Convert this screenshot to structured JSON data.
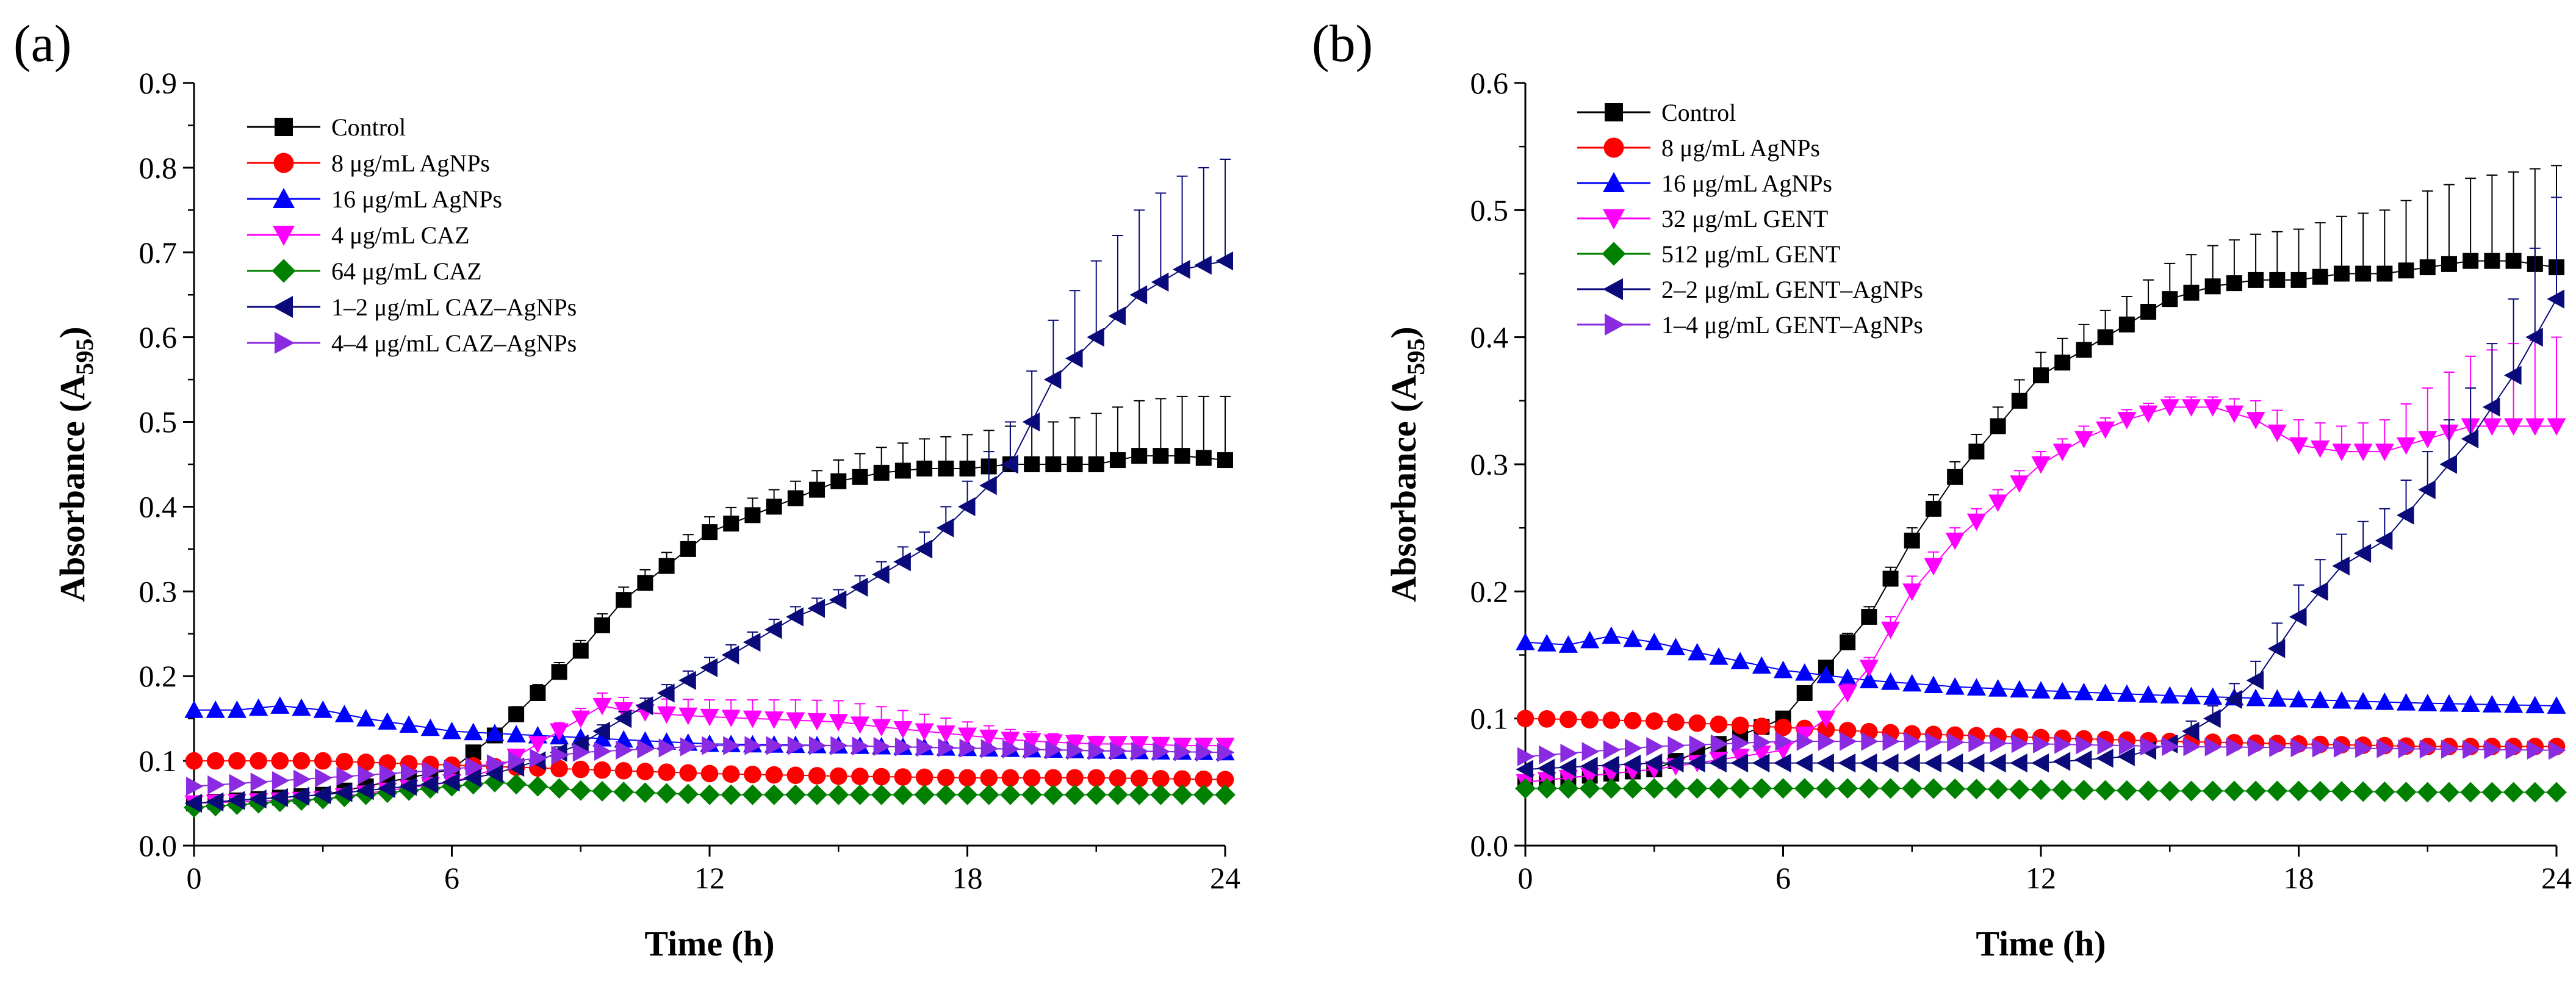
{
  "chart_data": [
    {
      "type": "line",
      "panel_label": "(a)",
      "xlabel": "Time (h)",
      "ylabel": "Absorbance (A595)",
      "ylabel_main": "Absorbance (A",
      "ylabel_sub": "595",
      "ylabel_close": ")",
      "xlim": [
        0,
        24
      ],
      "ylim": [
        0,
        0.9
      ],
      "xticks": [
        0,
        6,
        12,
        18,
        24
      ],
      "xtick_labels": [
        "0",
        "6",
        "12",
        "18",
        "24"
      ],
      "yticks": [
        0,
        0.1,
        0.2,
        0.3,
        0.4,
        0.5,
        0.6,
        0.7,
        0.8,
        0.9
      ],
      "ytick_labels": [
        "0.0",
        "0.1",
        "0.2",
        "0.3",
        "0.4",
        "0.5",
        "0.6",
        "0.7",
        "0.8",
        "0.9"
      ],
      "legend_position": "top-left",
      "series": [
        {
          "name": "Control",
          "color": "#000000",
          "marker": "square",
          "t": [
            0,
            3,
            6,
            7,
            8,
            9,
            10,
            11,
            12,
            13,
            14,
            15,
            16,
            17,
            18,
            19,
            20,
            21,
            22,
            23,
            24
          ],
          "y": [
            0.05,
            0.06,
            0.09,
            0.13,
            0.18,
            0.23,
            0.29,
            0.33,
            0.37,
            0.39,
            0.41,
            0.43,
            0.44,
            0.445,
            0.445,
            0.45,
            0.45,
            0.45,
            0.46,
            0.46,
            0.455
          ],
          "err": [
            0.005,
            0.005,
            0.005,
            0.008,
            0.01,
            0.012,
            0.015,
            0.016,
            0.018,
            0.02,
            0.02,
            0.025,
            0.03,
            0.035,
            0.04,
            0.045,
            0.05,
            0.06,
            0.065,
            0.07,
            0.075
          ]
        },
        {
          "name": "8 μg/mL AgNPs",
          "color": "#ff0000",
          "marker": "circle",
          "t": [
            0,
            3,
            6,
            9,
            12,
            15,
            18,
            21,
            24
          ],
          "y": [
            0.1,
            0.1,
            0.095,
            0.09,
            0.085,
            0.082,
            0.08,
            0.08,
            0.078
          ],
          "err": [
            0.003,
            0.003,
            0.003,
            0.003,
            0.003,
            0.003,
            0.003,
            0.003,
            0.003
          ]
        },
        {
          "name": "16 μg/mL AgNPs",
          "color": "#0000ff",
          "marker": "triangle-up",
          "t": [
            0,
            1,
            2,
            3,
            4,
            6,
            8,
            10,
            12,
            15,
            18,
            21,
            24
          ],
          "y": [
            0.16,
            0.16,
            0.165,
            0.16,
            0.15,
            0.135,
            0.13,
            0.125,
            0.12,
            0.118,
            0.115,
            0.112,
            0.11
          ],
          "err": [
            0.004,
            0.004,
            0.004,
            0.004,
            0.004,
            0.004,
            0.004,
            0.004,
            0.004,
            0.004,
            0.004,
            0.004,
            0.004
          ]
        },
        {
          "name": "4 μg/mL CAZ",
          "color": "#ff00ff",
          "marker": "triangle-down",
          "t": [
            0,
            3,
            6,
            7,
            8,
            9,
            9.5,
            10,
            11,
            12,
            13,
            14,
            15,
            16,
            17,
            18,
            19,
            20,
            21,
            22,
            23,
            24
          ],
          "y": [
            0.05,
            0.055,
            0.075,
            0.09,
            0.12,
            0.15,
            0.165,
            0.16,
            0.155,
            0.152,
            0.15,
            0.148,
            0.146,
            0.14,
            0.135,
            0.13,
            0.125,
            0.122,
            0.12,
            0.12,
            0.118,
            0.118
          ],
          "err": [
            0.003,
            0.003,
            0.005,
            0.006,
            0.008,
            0.012,
            0.015,
            0.015,
            0.018,
            0.02,
            0.022,
            0.024,
            0.025,
            0.024,
            0.02,
            0.016,
            0.012,
            0.01,
            0.009,
            0.008,
            0.008,
            0.008
          ]
        },
        {
          "name": "64 μg/mL CAZ",
          "color": "#008000",
          "marker": "diamond",
          "t": [
            0,
            3,
            6,
            7,
            8,
            9,
            12,
            15,
            18,
            21,
            24
          ],
          "y": [
            0.045,
            0.055,
            0.07,
            0.075,
            0.07,
            0.065,
            0.06,
            0.06,
            0.06,
            0.06,
            0.06
          ],
          "err": [
            0.003,
            0.003,
            0.003,
            0.003,
            0.003,
            0.003,
            0.003,
            0.003,
            0.003,
            0.003,
            0.003
          ]
        },
        {
          "name": "1–2 μg/mL CAZ–AgNPs",
          "color": "#0a0a7a",
          "marker": "triangle-left",
          "t": [
            0,
            3,
            6,
            7,
            8,
            9,
            10,
            11,
            12,
            13,
            14,
            15,
            16,
            17,
            18,
            19,
            20,
            21,
            22,
            23,
            24
          ],
          "y": [
            0.05,
            0.06,
            0.075,
            0.085,
            0.1,
            0.12,
            0.15,
            0.18,
            0.21,
            0.24,
            0.27,
            0.29,
            0.32,
            0.35,
            0.4,
            0.45,
            0.55,
            0.6,
            0.65,
            0.68,
            0.69
          ],
          "err": [
            0.003,
            0.003,
            0.004,
            0.005,
            0.006,
            0.007,
            0.008,
            0.01,
            0.012,
            0.012,
            0.012,
            0.012,
            0.015,
            0.02,
            0.03,
            0.05,
            0.07,
            0.09,
            0.1,
            0.11,
            0.12
          ]
        },
        {
          "name": "4–4 μg/mL CAZ–AgNPs",
          "color": "#8a2be2",
          "marker": "triangle-right",
          "t": [
            0,
            3,
            6,
            9,
            12,
            15,
            18,
            21,
            24
          ],
          "y": [
            0.07,
            0.08,
            0.09,
            0.11,
            0.118,
            0.118,
            0.115,
            0.112,
            0.11
          ],
          "err": [
            0.004,
            0.004,
            0.004,
            0.005,
            0.005,
            0.005,
            0.005,
            0.005,
            0.005
          ]
        }
      ]
    },
    {
      "type": "line",
      "panel_label": "(b)",
      "xlabel": "Time (h)",
      "ylabel": "Absorbance (A595)",
      "ylabel_main": "Absorbance (A",
      "ylabel_sub": "595",
      "ylabel_close": ")",
      "xlim": [
        0,
        24
      ],
      "ylim": [
        0,
        0.6
      ],
      "xticks": [
        0,
        6,
        12,
        18,
        24
      ],
      "xtick_labels": [
        "0",
        "6",
        "12",
        "18",
        "24"
      ],
      "yticks": [
        0,
        0.1,
        0.2,
        0.3,
        0.4,
        0.5,
        0.6
      ],
      "ytick_labels": [
        "0.0",
        "0.1",
        "0.2",
        "0.3",
        "0.4",
        "0.5",
        "0.6"
      ],
      "legend_position": "top-left",
      "series": [
        {
          "name": "Control",
          "color": "#000000",
          "marker": "square",
          "t": [
            0,
            3,
            6,
            7,
            8,
            9,
            10,
            11,
            12,
            13,
            14,
            15,
            16,
            17,
            18,
            19,
            20,
            21,
            22,
            23,
            24
          ],
          "y": [
            0.05,
            0.06,
            0.1,
            0.14,
            0.18,
            0.24,
            0.29,
            0.33,
            0.37,
            0.39,
            0.41,
            0.43,
            0.44,
            0.445,
            0.445,
            0.45,
            0.45,
            0.455,
            0.46,
            0.46,
            0.455
          ],
          "err": [
            0.003,
            0.003,
            0.005,
            0.006,
            0.008,
            0.01,
            0.012,
            0.015,
            0.018,
            0.02,
            0.022,
            0.028,
            0.032,
            0.036,
            0.04,
            0.045,
            0.05,
            0.06,
            0.065,
            0.07,
            0.08
          ]
        },
        {
          "name": "8 μg/mL AgNPs",
          "color": "#ff0000",
          "marker": "circle",
          "t": [
            0,
            3,
            6,
            9,
            12,
            15,
            18,
            21,
            24
          ],
          "y": [
            0.1,
            0.098,
            0.093,
            0.088,
            0.085,
            0.082,
            0.08,
            0.078,
            0.078
          ],
          "err": [
            0.003,
            0.003,
            0.003,
            0.003,
            0.003,
            0.003,
            0.003,
            0.003,
            0.003
          ]
        },
        {
          "name": "16 μg/mL AgNPs",
          "color": "#0000ff",
          "marker": "triangle-up",
          "t": [
            0,
            1,
            2,
            3,
            4,
            6,
            8,
            10,
            12,
            15,
            18,
            21,
            24
          ],
          "y": [
            0.16,
            0.158,
            0.165,
            0.16,
            0.152,
            0.138,
            0.13,
            0.125,
            0.122,
            0.118,
            0.115,
            0.112,
            0.11
          ],
          "err": [
            0.004,
            0.004,
            0.004,
            0.004,
            0.004,
            0.004,
            0.004,
            0.004,
            0.004,
            0.004,
            0.004,
            0.004,
            0.004
          ]
        },
        {
          "name": "32 μg/mL GENT",
          "color": "#ff00ff",
          "marker": "triangle-down",
          "t": [
            0,
            3,
            6,
            7,
            8,
            9,
            10,
            11,
            12,
            13,
            14,
            15,
            16,
            17,
            18,
            19,
            20,
            21,
            22,
            23,
            24
          ],
          "y": [
            0.05,
            0.06,
            0.075,
            0.1,
            0.14,
            0.2,
            0.24,
            0.27,
            0.3,
            0.32,
            0.335,
            0.345,
            0.345,
            0.335,
            0.315,
            0.31,
            0.31,
            0.32,
            0.33,
            0.33,
            0.33
          ],
          "err": [
            0.003,
            0.003,
            0.004,
            0.006,
            0.008,
            0.012,
            0.01,
            0.01,
            0.01,
            0.01,
            0.008,
            0.008,
            0.008,
            0.015,
            0.02,
            0.02,
            0.025,
            0.04,
            0.055,
            0.065,
            0.07
          ]
        },
        {
          "name": "512 μg/mL GENT",
          "color": "#008000",
          "marker": "diamond",
          "t": [
            0,
            3,
            6,
            9,
            12,
            15,
            18,
            21,
            24
          ],
          "y": [
            0.045,
            0.045,
            0.045,
            0.045,
            0.044,
            0.043,
            0.043,
            0.042,
            0.042
          ],
          "err": [
            0.002,
            0.002,
            0.002,
            0.002,
            0.002,
            0.002,
            0.002,
            0.002,
            0.002
          ]
        },
        {
          "name": "2–2 μg/mL GENT–AgNPs",
          "color": "#0a0a7a",
          "marker": "triangle-left",
          "t": [
            0,
            3,
            6,
            9,
            12,
            14,
            15,
            16,
            17,
            18,
            19,
            20,
            21,
            22,
            23,
            24
          ],
          "y": [
            0.06,
            0.065,
            0.065,
            0.065,
            0.065,
            0.07,
            0.08,
            0.1,
            0.13,
            0.18,
            0.22,
            0.24,
            0.28,
            0.32,
            0.37,
            0.43
          ],
          "err": [
            0.003,
            0.003,
            0.003,
            0.003,
            0.003,
            0.004,
            0.006,
            0.01,
            0.015,
            0.025,
            0.025,
            0.025,
            0.03,
            0.04,
            0.06,
            0.08
          ]
        },
        {
          "name": "1–4 μg/mL GENT–AgNPs",
          "color": "#8a2be2",
          "marker": "triangle-right",
          "t": [
            0,
            3,
            6,
            9,
            12,
            15,
            18,
            21,
            24
          ],
          "y": [
            0.07,
            0.078,
            0.082,
            0.082,
            0.08,
            0.078,
            0.077,
            0.076,
            0.075
          ],
          "err": [
            0.003,
            0.003,
            0.003,
            0.003,
            0.003,
            0.003,
            0.003,
            0.003,
            0.003
          ]
        }
      ]
    }
  ]
}
